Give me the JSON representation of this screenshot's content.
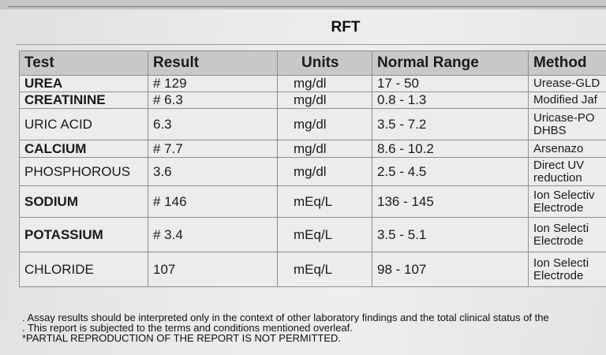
{
  "report": {
    "title": "RFT",
    "columns": [
      "Test",
      "Result",
      "Units",
      "Normal Range",
      "Method"
    ],
    "rows": [
      {
        "test": "UREA",
        "result": "# 129",
        "units": "mg/dl",
        "range": "17 - 50",
        "method": "Urease-GLD",
        "bold": true
      },
      {
        "test": "CREATININE",
        "result": "# 6.3",
        "units": "mg/dl",
        "range": "0.8 - 1.3",
        "method": "Modified Jaf",
        "bold": true
      },
      {
        "test": "URIC ACID",
        "result": "6.3",
        "units": "mg/dl",
        "range": "3.5 - 7.2",
        "method": "Uricase-PO DHBS",
        "bold": false
      },
      {
        "test": "CALCIUM",
        "result": "# 7.7",
        "units": "mg/dl",
        "range": "8.6 - 10.2",
        "method": "Arsenazo",
        "bold": true
      },
      {
        "test": "PHOSPHOROUS",
        "result": "3.6",
        "units": "mg/dl",
        "range": "2.5 - 4.5",
        "method": "Direct UV reduction",
        "bold": false
      },
      {
        "test": "SODIUM",
        "result": "# 146",
        "units": "mEq/L",
        "range": "136 - 145",
        "method": "Ion Selectiv Electrode",
        "bold": true
      },
      {
        "test": "POTASSIUM",
        "result": "# 3.4",
        "units": "mEq/L",
        "range": "3.5 - 5.1",
        "method": "Ion Selecti Electrode",
        "bold": true
      },
      {
        "test": "CHLORIDE",
        "result": "107",
        "units": "mEq/L",
        "range": "98 - 107",
        "method": "Ion Selecti Electrode",
        "bold": false
      }
    ]
  },
  "footer": {
    "line1": ". Assay results should be interpreted only in the context of other laboratory findings and the total clinical status of the",
    "line2": ". This report is subjected to the terms and conditions mentioned overleaf.",
    "line3": "*PARTIAL REPRODUCTION OF THE REPORT IS NOT PERMITTED."
  }
}
